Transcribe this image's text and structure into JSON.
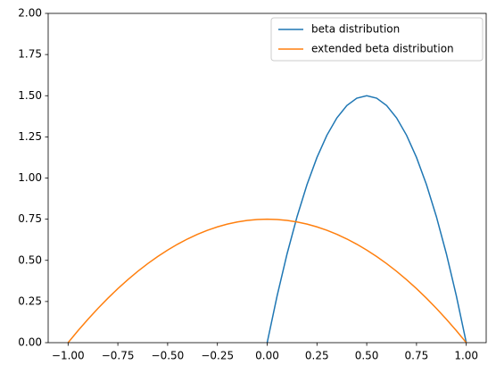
{
  "chart_data": {
    "type": "line",
    "x": [
      -1,
      -0.95,
      -0.9,
      -0.85,
      -0.8,
      -0.75,
      -0.7,
      -0.65,
      -0.6,
      -0.55,
      -0.5,
      -0.45,
      -0.4,
      -0.35,
      -0.3,
      -0.25,
      -0.2,
      -0.15,
      -0.1,
      -0.05,
      0,
      0.05,
      0.1,
      0.15,
      0.2,
      0.25,
      0.3,
      0.35,
      0.4,
      0.45,
      0.5,
      0.55,
      0.6,
      0.65,
      0.7,
      0.75,
      0.8,
      0.85,
      0.9,
      0.95,
      1
    ],
    "series": [
      {
        "name": "beta distribution",
        "color": "#1f77b4",
        "values": [
          null,
          null,
          null,
          null,
          null,
          null,
          null,
          null,
          null,
          null,
          null,
          null,
          null,
          null,
          null,
          null,
          null,
          null,
          null,
          null,
          0,
          0.285,
          0.54,
          0.765,
          0.96,
          1.125,
          1.26,
          1.365,
          1.44,
          1.485,
          1.5,
          1.485,
          1.44,
          1.365,
          1.26,
          1.125,
          0.96,
          0.765,
          0.54,
          0.285,
          0
        ]
      },
      {
        "name": "extended beta distribution",
        "color": "#ff7f0e",
        "values": [
          0,
          0.073125,
          0.1425,
          0.208125,
          0.27,
          0.328125,
          0.3825,
          0.433125,
          0.48,
          0.523125,
          0.5625,
          0.598125,
          0.63,
          0.658125,
          0.6825,
          0.703125,
          0.72,
          0.733125,
          0.7425,
          0.748125,
          0.75,
          0.748125,
          0.7425,
          0.733125,
          0.72,
          0.703125,
          0.6825,
          0.658125,
          0.63,
          0.598125,
          0.5625,
          0.523125,
          0.48,
          0.433125,
          0.3825,
          0.328125,
          0.27,
          0.208125,
          0.1425,
          0.073125,
          0
        ]
      }
    ],
    "xlim": [
      -1.1,
      1.1
    ],
    "xticks": [
      {
        "value": -1,
        "label": "−1.00"
      },
      {
        "value": -0.75,
        "label": "−0.75"
      },
      {
        "value": -0.5,
        "label": "−0.50"
      },
      {
        "value": -0.25,
        "label": "−0.25"
      },
      {
        "value": 0,
        "label": "0.00"
      },
      {
        "value": 0.25,
        "label": "0.25"
      },
      {
        "value": 0.5,
        "label": "0.50"
      },
      {
        "value": 0.75,
        "label": "0.75"
      },
      {
        "value": 1,
        "label": "1.00"
      }
    ],
    "ylim": [
      0,
      2
    ],
    "yticks": [
      {
        "value": 0,
        "label": "0.00"
      },
      {
        "value": 0.25,
        "label": "0.25"
      },
      {
        "value": 0.5,
        "label": "0.50"
      },
      {
        "value": 0.75,
        "label": "0.75"
      },
      {
        "value": 1,
        "label": "1.00"
      },
      {
        "value": 1.25,
        "label": "1.25"
      },
      {
        "value": 1.5,
        "label": "1.50"
      },
      {
        "value": 1.75,
        "label": "1.75"
      },
      {
        "value": 2,
        "label": "2.00"
      }
    ],
    "legend": "upper right"
  }
}
